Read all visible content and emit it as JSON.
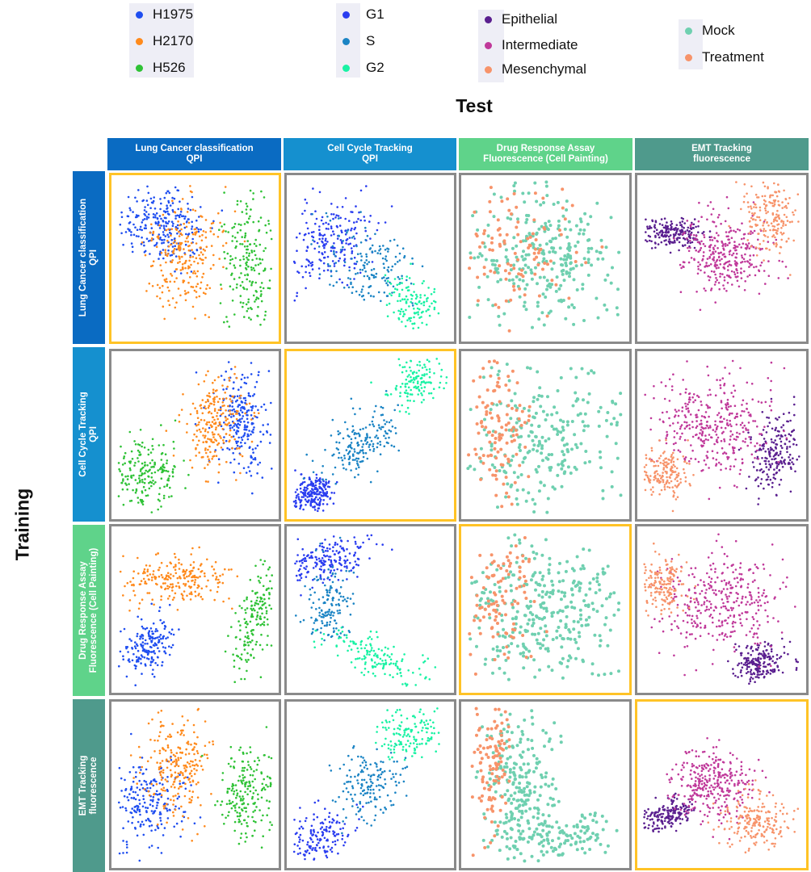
{
  "figure": {
    "test_label": "Test",
    "training_label": "Training"
  },
  "legends": [
    {
      "id": "cell-line",
      "items": [
        {
          "label": "H1975",
          "color": "#1f4ef0"
        },
        {
          "label": "H2170",
          "color": "#ff8a1c"
        },
        {
          "label": "H526",
          "color": "#2fc236"
        }
      ]
    },
    {
      "id": "cell-cycle",
      "items": [
        {
          "label": "G1",
          "color": "#2a3df0"
        },
        {
          "label": "S",
          "color": "#1b84c4"
        },
        {
          "label": "G2",
          "color": "#19f2a4"
        }
      ]
    },
    {
      "id": "emt",
      "items": [
        {
          "label": "Epithelial",
          "color": "#5a1f8f"
        },
        {
          "label": "Intermediate",
          "color": "#c0399a"
        },
        {
          "label": "Mesenchymal",
          "color": "#f7936a"
        }
      ]
    },
    {
      "id": "drug",
      "items": [
        {
          "label": "Mock",
          "color": "#6fd0b0"
        },
        {
          "label": "Treatment",
          "color": "#f7936a"
        }
      ]
    }
  ],
  "columns": [
    {
      "line1": "Lung Cancer  classification",
      "line2": "QPI",
      "color": "#0a6bc2"
    },
    {
      "line1": "Cell Cycle Tracking",
      "line2": "QPI",
      "color": "#1590cf"
    },
    {
      "line1": "Drug Response Assay",
      "line2": "Fluorescence (Cell Painting)",
      "color": "#5fd38a"
    },
    {
      "line1": "EMT Tracking",
      "line2": "fluorescence",
      "color": "#4f9a8c"
    }
  ],
  "rows": [
    {
      "line1": "Lung Cancer  classification",
      "line2": "QPI",
      "color": "#0a6bc2"
    },
    {
      "line1": "Cell Cycle Tracking",
      "line2": "QPI",
      "color": "#1590cf"
    },
    {
      "line1": "Drug Response Assay",
      "line2": "Fluorescence (Cell Painting)",
      "color": "#5fd38a"
    },
    {
      "line1": "EMT Tracking",
      "line2": "fluorescence",
      "color": "#4f9a8c"
    }
  ],
  "highlight_color": "#ffc326",
  "panel_border_color": "#8a8a8a"
}
